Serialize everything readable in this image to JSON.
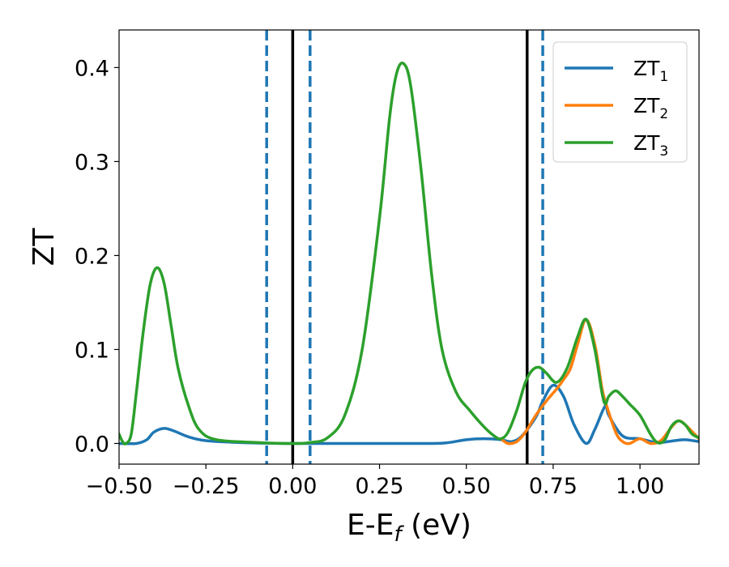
{
  "chart_data": {
    "type": "line",
    "xlabel": "E-E",
    "xlabel_sub": "f",
    "xlabel_unit": " (eV)",
    "ylabel": "ZT",
    "xlim": [
      -0.5,
      1.17
    ],
    "ylim": [
      -0.022,
      0.44
    ],
    "xticks": [
      -0.5,
      -0.25,
      0.0,
      0.25,
      0.5,
      0.75,
      1.0
    ],
    "xtick_labels": [
      "−0.50",
      "−0.25",
      "0.00",
      "0.25",
      "0.50",
      "0.75",
      "1.00"
    ],
    "yticks": [
      0.0,
      0.1,
      0.2,
      0.3,
      0.4
    ],
    "ytick_labels": [
      "0.0",
      "0.1",
      "0.2",
      "0.3",
      "0.4"
    ],
    "grid": false,
    "legend_position": "top-right",
    "vlines": [
      {
        "x": -0.075,
        "style": "dashed",
        "color": "#1f77b4"
      },
      {
        "x": 0.0,
        "style": "solid",
        "color": "#000000"
      },
      {
        "x": 0.05,
        "style": "dashed",
        "color": "#1f77b4"
      },
      {
        "x": 0.675,
        "style": "solid",
        "color": "#000000"
      },
      {
        "x": 0.72,
        "style": "dashed",
        "color": "#1f77b4"
      }
    ],
    "series": [
      {
        "name": "ZT",
        "sub": "1",
        "color": "#1f77b4",
        "points": [
          [
            -0.5,
            0.0
          ],
          [
            -0.45,
            0.0
          ],
          [
            -0.42,
            0.004
          ],
          [
            -0.4,
            0.012
          ],
          [
            -0.37,
            0.016
          ],
          [
            -0.34,
            0.013
          ],
          [
            -0.3,
            0.007
          ],
          [
            -0.25,
            0.003
          ],
          [
            -0.15,
            0.001
          ],
          [
            0.0,
            0.0
          ],
          [
            0.2,
            0.0
          ],
          [
            0.4,
            0.0
          ],
          [
            0.45,
            0.001
          ],
          [
            0.5,
            0.004
          ],
          [
            0.55,
            0.005
          ],
          [
            0.6,
            0.004
          ],
          [
            0.63,
            0.002
          ],
          [
            0.66,
            0.008
          ],
          [
            0.7,
            0.028
          ],
          [
            0.72,
            0.045
          ],
          [
            0.75,
            0.062
          ],
          [
            0.78,
            0.05
          ],
          [
            0.81,
            0.02
          ],
          [
            0.845,
            0.0
          ],
          [
            0.87,
            0.015
          ],
          [
            0.9,
            0.04
          ],
          [
            0.91,
            0.03
          ],
          [
            0.95,
            0.008
          ],
          [
            1.0,
            0.005
          ],
          [
            1.05,
            0.001
          ],
          [
            1.1,
            0.003
          ],
          [
            1.13,
            0.004
          ],
          [
            1.17,
            0.002
          ]
        ]
      },
      {
        "name": "ZT",
        "sub": "2",
        "color": "#ff7f0e",
        "points": [
          [
            0.6,
            0.005
          ],
          [
            0.62,
            0.0
          ],
          [
            0.645,
            0.002
          ],
          [
            0.67,
            0.012
          ],
          [
            0.7,
            0.03
          ],
          [
            0.73,
            0.045
          ],
          [
            0.76,
            0.058
          ],
          [
            0.78,
            0.068
          ],
          [
            0.8,
            0.08
          ],
          [
            0.82,
            0.105
          ],
          [
            0.845,
            0.132
          ],
          [
            0.87,
            0.105
          ],
          [
            0.89,
            0.06
          ],
          [
            0.9,
            0.045
          ],
          [
            0.93,
            0.012
          ],
          [
            0.95,
            0.002
          ],
          [
            0.97,
            0.0
          ],
          [
            1.0,
            0.005
          ],
          [
            1.03,
            0.0
          ],
          [
            1.06,
            0.003
          ],
          [
            1.09,
            0.017
          ],
          [
            1.11,
            0.024
          ],
          [
            1.13,
            0.02
          ],
          [
            1.17,
            0.005
          ]
        ]
      },
      {
        "name": "ZT",
        "sub": "3",
        "color": "#2ca02c",
        "points": [
          [
            -0.5,
            0.01
          ],
          [
            -0.49,
            0.002
          ],
          [
            -0.48,
            0.0
          ],
          [
            -0.465,
            0.01
          ],
          [
            -0.45,
            0.055
          ],
          [
            -0.43,
            0.12
          ],
          [
            -0.41,
            0.17
          ],
          [
            -0.39,
            0.187
          ],
          [
            -0.37,
            0.17
          ],
          [
            -0.35,
            0.125
          ],
          [
            -0.33,
            0.08
          ],
          [
            -0.3,
            0.04
          ],
          [
            -0.27,
            0.015
          ],
          [
            -0.22,
            0.004
          ],
          [
            -0.1,
            0.001
          ],
          [
            0.0,
            0.0
          ],
          [
            0.05,
            0.001
          ],
          [
            0.1,
            0.006
          ],
          [
            0.15,
            0.03
          ],
          [
            0.2,
            0.1
          ],
          [
            0.25,
            0.24
          ],
          [
            0.28,
            0.35
          ],
          [
            0.3,
            0.395
          ],
          [
            0.32,
            0.404
          ],
          [
            0.34,
            0.38
          ],
          [
            0.37,
            0.29
          ],
          [
            0.4,
            0.18
          ],
          [
            0.43,
            0.1
          ],
          [
            0.47,
            0.055
          ],
          [
            0.51,
            0.035
          ],
          [
            0.55,
            0.018
          ],
          [
            0.58,
            0.008
          ],
          [
            0.6,
            0.005
          ],
          [
            0.62,
            0.012
          ],
          [
            0.645,
            0.035
          ],
          [
            0.67,
            0.065
          ],
          [
            0.69,
            0.078
          ],
          [
            0.71,
            0.081
          ],
          [
            0.73,
            0.075
          ],
          [
            0.76,
            0.065
          ],
          [
            0.79,
            0.08
          ],
          [
            0.82,
            0.113
          ],
          [
            0.845,
            0.132
          ],
          [
            0.87,
            0.1
          ],
          [
            0.89,
            0.055
          ],
          [
            0.9,
            0.042
          ],
          [
            0.91,
            0.05
          ],
          [
            0.93,
            0.056
          ],
          [
            0.95,
            0.05
          ],
          [
            0.97,
            0.042
          ],
          [
            1.0,
            0.03
          ],
          [
            1.03,
            0.01
          ],
          [
            1.05,
            0.001
          ],
          [
            1.07,
            0.003
          ],
          [
            1.09,
            0.018
          ],
          [
            1.11,
            0.024
          ],
          [
            1.13,
            0.02
          ],
          [
            1.15,
            0.01
          ],
          [
            1.17,
            0.006
          ]
        ]
      }
    ]
  }
}
